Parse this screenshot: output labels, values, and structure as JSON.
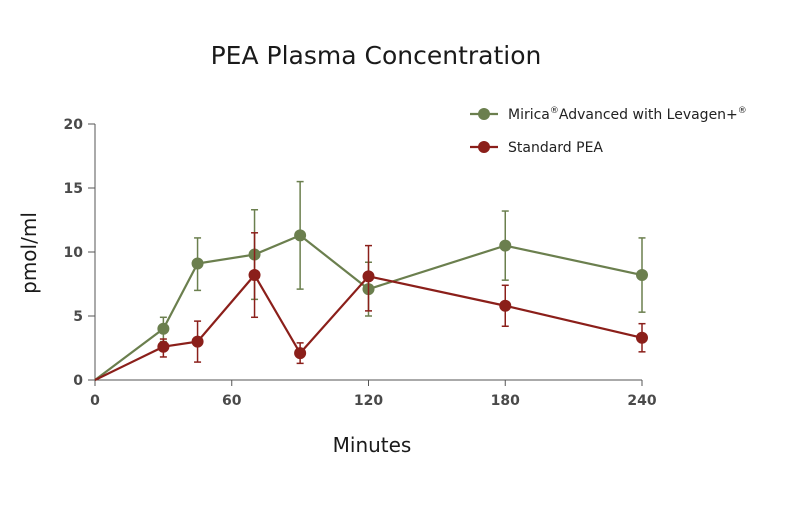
{
  "chart_data": {
    "type": "line",
    "title": "PEA Plasma Concentration",
    "xlabel": "Minutes",
    "ylabel": "pmol/ml",
    "xlim": [
      0,
      240
    ],
    "ylim": [
      0,
      20
    ],
    "xticks": [
      0,
      60,
      120,
      180,
      240
    ],
    "yticks": [
      0,
      5,
      10,
      15,
      20
    ],
    "grid": false,
    "legend_position": "top-right",
    "series": [
      {
        "name": "Mirica",
        "name_suffix": "Advanced with Levagen+",
        "name_mark": "®",
        "color": "#6b7f4e",
        "x": [
          0,
          30,
          45,
          70,
          90,
          120,
          180,
          240
        ],
        "y": [
          0,
          4.0,
          9.1,
          9.8,
          11.3,
          7.1,
          10.5,
          8.2
        ],
        "err_low": [
          null,
          3.0,
          7.0,
          6.3,
          7.1,
          5.0,
          7.8,
          5.3
        ],
        "err_high": [
          null,
          4.9,
          11.1,
          13.3,
          15.5,
          9.2,
          13.2,
          11.1
        ]
      },
      {
        "name": "Standard PEA",
        "color": "#8b1f1a",
        "x": [
          0,
          30,
          45,
          70,
          90,
          120,
          180,
          240
        ],
        "y": [
          0,
          2.6,
          3.0,
          8.2,
          2.1,
          8.1,
          5.8,
          3.3
        ],
        "err_low": [
          null,
          1.8,
          1.4,
          4.9,
          1.3,
          5.4,
          4.2,
          2.2
        ],
        "err_high": [
          null,
          3.2,
          4.6,
          11.5,
          2.9,
          10.5,
          7.4,
          4.4
        ]
      }
    ]
  }
}
